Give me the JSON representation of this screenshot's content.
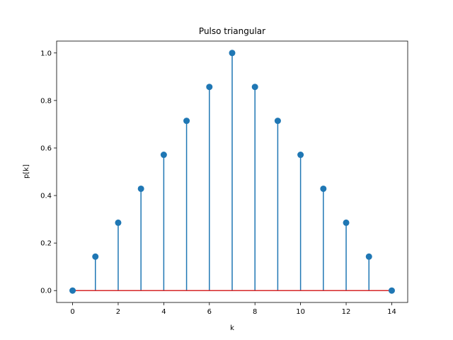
{
  "chart_data": {
    "type": "stem",
    "title": "Pulso triangular",
    "xlabel": "k",
    "ylabel": "p[k]",
    "x": [
      0,
      1,
      2,
      3,
      4,
      5,
      6,
      7,
      8,
      9,
      10,
      11,
      12,
      13,
      14
    ],
    "values": [
      0,
      0.142857,
      0.285714,
      0.428571,
      0.571429,
      0.714286,
      0.857143,
      1.0,
      0.857143,
      0.714286,
      0.571429,
      0.428571,
      0.285714,
      0.142857,
      0
    ],
    "xlim": [
      -0.7,
      14.7
    ],
    "ylim": [
      -0.05,
      1.05
    ],
    "xticks": [
      0,
      2,
      4,
      6,
      8,
      10,
      12,
      14
    ],
    "xtick_labels": [
      "0",
      "2",
      "4",
      "6",
      "8",
      "10",
      "12",
      "14"
    ],
    "yticks": [
      0,
      0.2,
      0.4,
      0.6,
      0.8,
      1.0
    ],
    "ytick_labels": [
      "0.0",
      "0.2",
      "0.4",
      "0.6",
      "0.8",
      "1.0"
    ],
    "grid": false,
    "colors": {
      "stem": "#1f77b4",
      "baseline": "#d62728"
    }
  }
}
